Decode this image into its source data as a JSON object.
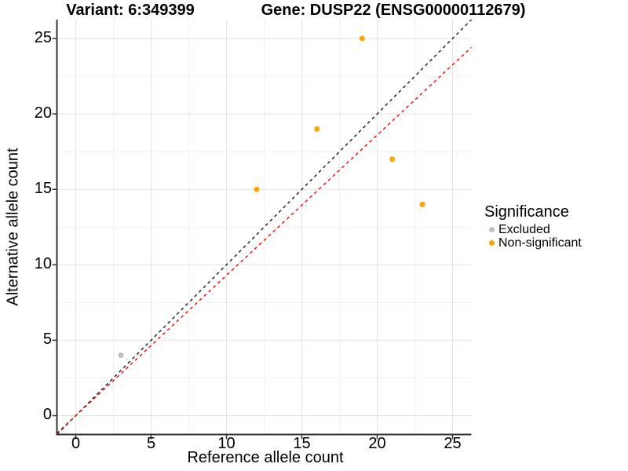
{
  "header": {
    "variant_title": "Variant: 6:349399",
    "gene_title": "Gene: DUSP22 (ENSG00000112679)"
  },
  "chart_data": {
    "type": "scatter",
    "title": "Variant: 6:349399 — Gene: DUSP22 (ENSG00000112679)",
    "xlabel": "Reference allele count",
    "ylabel": "Alternative allele count",
    "xlim": [
      -1.25,
      26.25
    ],
    "ylim": [
      -1.25,
      26.25
    ],
    "x_ticks": [
      0,
      5,
      10,
      15,
      20,
      25
    ],
    "y_ticks": [
      0,
      5,
      10,
      15,
      20,
      25
    ],
    "grid_interval": 2.5,
    "grid": true,
    "legend_position": "right",
    "series": [
      {
        "name": "Excluded",
        "color": "#BEBEBE",
        "points": [
          [
            3,
            4
          ]
        ]
      },
      {
        "name": "Non-significant",
        "color": "#FFA500",
        "points": [
          [
            12,
            15
          ],
          [
            16,
            19
          ],
          [
            19,
            25
          ],
          [
            21,
            17
          ],
          [
            23,
            14
          ]
        ]
      }
    ],
    "reference_lines": [
      {
        "name": "identity",
        "slope": 1,
        "intercept": 0,
        "color": "#1A1A1A",
        "style": "dashed"
      },
      {
        "name": "expected-ratio",
        "slope": 0.93,
        "intercept": 0,
        "color": "#FF0000",
        "style": "dashed"
      }
    ]
  },
  "legend": {
    "title": "Significance",
    "items": [
      {
        "label": "Excluded",
        "color": "#BEBEBE"
      },
      {
        "label": "Non-significant",
        "color": "#FFA500"
      }
    ]
  },
  "colors": {
    "grid_major": "#E2E2E2",
    "grid_minor": "#F0F0F0",
    "axis": "#333333",
    "background": "#FFFFFF"
  }
}
